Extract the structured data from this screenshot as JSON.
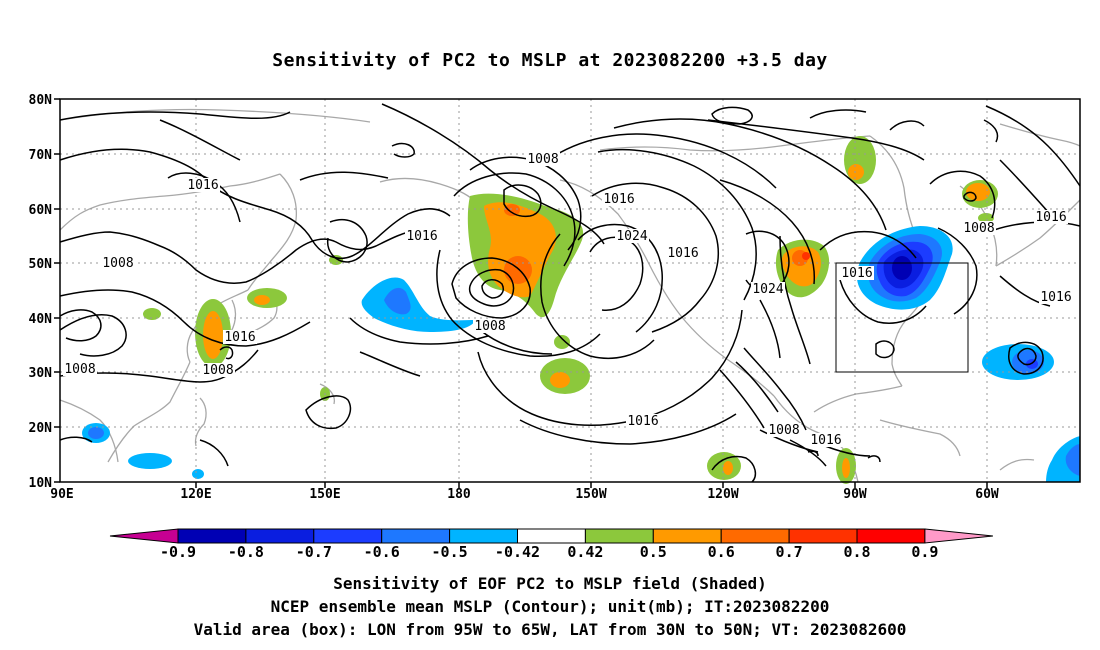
{
  "title": "Sensitivity of PC2 to MSLP at 2023082200 +3.5 day",
  "map": {
    "lat_labels": [
      "80N",
      "70N",
      "60N",
      "50N",
      "40N",
      "30N",
      "20N",
      "10N"
    ],
    "lon_labels": [
      "90E",
      "120E",
      "150E",
      "180",
      "150W",
      "120W",
      "90W",
      "60W"
    ],
    "box": {
      "lon_west": "95W",
      "lon_east": "65W",
      "lat_south": "30N",
      "lat_north": "50N"
    },
    "contour_labels": [
      "1016",
      "1008",
      "1016",
      "1008",
      "1008",
      "1008",
      "1016",
      "1024",
      "1008",
      "1016",
      "1024",
      "1016",
      "1016",
      "1008",
      "1016",
      "1016",
      "1016",
      "1008",
      "1016"
    ]
  },
  "colorbar": {
    "ticks": [
      "-0.9",
      "-0.8",
      "-0.7",
      "-0.6",
      "-0.5",
      "-0.42",
      "0.42",
      "0.5",
      "0.6",
      "0.7",
      "0.8",
      "0.9"
    ],
    "colors": [
      "#c60092",
      "#0000b4",
      "#0a1ee0",
      "#1c3cff",
      "#1e78ff",
      "#00b4ff",
      "#ffffff",
      "#8cc83c",
      "#ff9a00",
      "#ff6a00",
      "#ff3200",
      "#ff0000",
      "#ff9ac8"
    ]
  },
  "captions": [
    "Sensitivity of EOF PC2 to MSLP field (Shaded)",
    "NCEP ensemble mean MSLP (Contour); unit(mb); IT:2023082200",
    "Valid area (box): LON from 95W to 65W, LAT from 30N to 50N; VT: 2023082600"
  ]
}
